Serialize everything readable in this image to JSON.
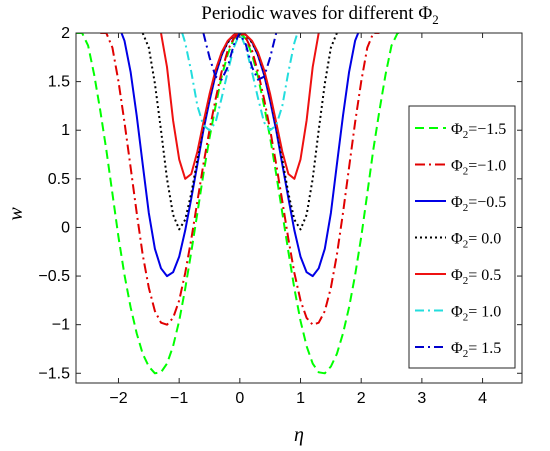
{
  "chart_data": {
    "type": "line",
    "title": "Periodic waves for different Φ",
    "title_subscript": "2",
    "xlabel": "η",
    "ylabel": "w",
    "xlim": [
      -2.7,
      4.65
    ],
    "ylim": [
      -1.6,
      2.0
    ],
    "xticks": [
      -2,
      -1,
      0,
      1,
      2,
      3,
      4
    ],
    "xtick_labels": [
      "−2",
      "−1",
      "0",
      "1",
      "2",
      "3",
      "4"
    ],
    "yticks": [
      -1.5,
      -1,
      -0.5,
      0,
      0.5,
      1,
      1.5,
      2
    ],
    "ytick_labels": [
      "−1.5",
      "−1",
      "−0.5",
      "0",
      "0.5",
      "1",
      "1.5",
      "2"
    ],
    "grid": false,
    "legend_position": "right",
    "legend_symbol": "Φ",
    "legend_subscript": "2",
    "series": [
      {
        "name": "Φ2=−1.5",
        "label_value": "=−1.5",
        "phi": -1.5,
        "color": "#00ff00",
        "dash": "9,5",
        "x": [
          -2.7,
          -2.6,
          -2.5,
          -2.4,
          -2.3,
          -2.2,
          -2.1,
          -2.0,
          -1.9,
          -1.8,
          -1.7,
          -1.6,
          -1.5,
          -1.4,
          -1.3,
          -1.2,
          -1.1,
          -1.0,
          -0.9,
          -0.8,
          -0.7,
          -0.6,
          -0.5,
          -0.4,
          -0.3,
          -0.2,
          -0.1,
          0.0,
          0.1,
          0.2,
          0.3,
          0.4,
          0.5,
          0.6,
          0.7,
          0.8,
          0.9,
          1.0,
          1.1,
          1.2,
          1.3,
          1.4,
          1.5,
          1.6,
          1.7,
          1.8,
          1.9,
          2.0,
          2.1,
          2.2,
          2.3,
          2.4,
          2.5,
          2.6,
          2.7
        ],
        "y": [
          2.0,
          2.0,
          1.87,
          1.57,
          1.2,
          0.8,
          0.35,
          -0.1,
          -0.49,
          -0.82,
          -1.09,
          -1.3,
          -1.43,
          -1.5,
          -1.49,
          -1.4,
          -1.22,
          -0.96,
          -0.63,
          -0.25,
          0.15,
          0.55,
          0.92,
          1.25,
          1.55,
          1.78,
          1.94,
          2.0,
          1.94,
          1.78,
          1.55,
          1.25,
          0.92,
          0.55,
          0.15,
          -0.25,
          -0.63,
          -0.96,
          -1.22,
          -1.4,
          -1.49,
          -1.5,
          -1.43,
          -1.3,
          -1.09,
          -0.82,
          -0.49,
          -0.1,
          0.35,
          0.8,
          1.2,
          1.57,
          1.87,
          2.0,
          2.0
        ]
      },
      {
        "name": "Φ2=−1.0",
        "label_value": "=−1.0",
        "phi": -1.0,
        "color": "#e00000",
        "dash": "10,4,2,4",
        "x": [
          -2.3,
          -2.2,
          -2.1,
          -2.0,
          -1.9,
          -1.8,
          -1.7,
          -1.6,
          -1.5,
          -1.4,
          -1.3,
          -1.2,
          -1.1,
          -1.0,
          -0.9,
          -0.8,
          -0.7,
          -0.6,
          -0.5,
          -0.4,
          -0.3,
          -0.2,
          -0.1,
          0.0,
          0.1,
          0.2,
          0.3,
          0.4,
          0.5,
          0.6,
          0.7,
          0.8,
          0.9,
          1.0,
          1.1,
          1.2,
          1.3,
          1.4,
          1.5,
          1.6,
          1.7,
          1.8,
          1.9,
          2.0,
          2.1,
          2.2,
          2.3
        ],
        "y": [
          2.0,
          2.0,
          1.85,
          1.5,
          1.08,
          0.62,
          0.15,
          -0.28,
          -0.62,
          -0.86,
          -0.98,
          -1.0,
          -0.93,
          -0.75,
          -0.47,
          -0.12,
          0.27,
          0.65,
          1.0,
          1.32,
          1.6,
          1.82,
          1.95,
          2.0,
          1.95,
          1.82,
          1.6,
          1.32,
          1.0,
          0.65,
          0.27,
          -0.12,
          -0.47,
          -0.75,
          -0.93,
          -1.0,
          -0.98,
          -0.86,
          -0.62,
          -0.28,
          0.15,
          0.62,
          1.08,
          1.5,
          1.85,
          2.0,
          2.0
        ]
      },
      {
        "name": "Φ2=−0.5",
        "label_value": "=−0.5",
        "phi": -0.5,
        "color": "#0000e6",
        "dash": "",
        "x": [
          -1.95,
          -1.9,
          -1.8,
          -1.7,
          -1.6,
          -1.5,
          -1.4,
          -1.3,
          -1.2,
          -1.1,
          -1.0,
          -0.9,
          -0.8,
          -0.7,
          -0.6,
          -0.5,
          -0.4,
          -0.3,
          -0.2,
          -0.1,
          0.0,
          0.1,
          0.2,
          0.3,
          0.4,
          0.5,
          0.6,
          0.7,
          0.8,
          0.9,
          1.0,
          1.1,
          1.2,
          1.3,
          1.4,
          1.5,
          1.6,
          1.7,
          1.8,
          1.9,
          1.95
        ],
        "y": [
          2.0,
          1.92,
          1.6,
          1.15,
          0.65,
          0.15,
          -0.22,
          -0.42,
          -0.5,
          -0.46,
          -0.3,
          -0.03,
          0.3,
          0.65,
          1.0,
          1.3,
          1.57,
          1.77,
          1.91,
          1.98,
          2.0,
          1.98,
          1.91,
          1.77,
          1.57,
          1.3,
          1.0,
          0.65,
          0.3,
          -0.03,
          -0.3,
          -0.46,
          -0.5,
          -0.42,
          -0.22,
          0.15,
          0.65,
          1.15,
          1.6,
          1.92,
          2.0
        ]
      },
      {
        "name": "Φ2= 0.0",
        "label_value": "= 0.0",
        "phi": 0.0,
        "color": "#000000",
        "dash": "2,3",
        "x": [
          -1.6,
          -1.5,
          -1.4,
          -1.3,
          -1.2,
          -1.1,
          -1.0,
          -0.9,
          -0.8,
          -0.7,
          -0.6,
          -0.5,
          -0.4,
          -0.3,
          -0.2,
          -0.1,
          0.0,
          0.1,
          0.2,
          0.3,
          0.4,
          0.5,
          0.6,
          0.7,
          0.8,
          0.9,
          1.0,
          1.1,
          1.2,
          1.3,
          1.4,
          1.5,
          1.6
        ],
        "y": [
          2.0,
          1.85,
          1.48,
          1.0,
          0.5,
          0.13,
          -0.02,
          0.08,
          0.35,
          0.7,
          1.05,
          1.35,
          1.6,
          1.78,
          1.9,
          1.98,
          2.0,
          1.98,
          1.9,
          1.78,
          1.6,
          1.35,
          1.05,
          0.7,
          0.35,
          0.08,
          -0.02,
          0.13,
          0.5,
          1.0,
          1.48,
          1.85,
          2.0
        ]
      },
      {
        "name": "Φ2= 0.5",
        "label_value": "= 0.5",
        "phi": 0.5,
        "color": "#ee1111",
        "dash": "",
        "x": [
          -1.3,
          -1.2,
          -1.1,
          -1.0,
          -0.9,
          -0.8,
          -0.7,
          -0.6,
          -0.5,
          -0.4,
          -0.3,
          -0.2,
          -0.1,
          0.0,
          0.1,
          0.2,
          0.3,
          0.4,
          0.5,
          0.6,
          0.7,
          0.8,
          0.9,
          1.0,
          1.1,
          1.2,
          1.3
        ],
        "y": [
          2.0,
          1.65,
          1.1,
          0.7,
          0.5,
          0.55,
          0.78,
          1.08,
          1.37,
          1.62,
          1.8,
          1.92,
          1.98,
          2.0,
          1.98,
          1.92,
          1.8,
          1.62,
          1.37,
          1.08,
          0.78,
          0.55,
          0.5,
          0.7,
          1.1,
          1.65,
          2.0
        ]
      },
      {
        "name": "Φ2= 1.0",
        "label_value": "= 1.0",
        "phi": 1.0,
        "color": "#22dddd",
        "dash": "9,4,2,4",
        "x": [
          -0.95,
          -0.9,
          -0.8,
          -0.7,
          -0.6,
          -0.5,
          -0.4,
          -0.3,
          -0.2,
          -0.1,
          0.0,
          0.1,
          0.2,
          0.3,
          0.4,
          0.5,
          0.6,
          0.7,
          0.8,
          0.9,
          0.95
        ],
        "y": [
          2.0,
          1.9,
          1.6,
          1.25,
          1.05,
          1.0,
          1.08,
          1.33,
          1.6,
          1.85,
          2.0,
          1.85,
          1.6,
          1.33,
          1.08,
          1.0,
          1.05,
          1.25,
          1.6,
          1.9,
          2.0
        ]
      },
      {
        "name": "Φ2= 1.5",
        "label_value": "= 1.5",
        "phi": 1.5,
        "color": "#0000cc",
        "dash": "9,4,2,4",
        "x": [
          -0.6,
          -0.5,
          -0.4,
          -0.3,
          -0.2,
          -0.1,
          0.0,
          0.1,
          0.2,
          0.3,
          0.4,
          0.5,
          0.6
        ],
        "y": [
          2.0,
          1.75,
          1.55,
          1.52,
          1.65,
          1.88,
          2.0,
          1.88,
          1.65,
          1.52,
          1.55,
          1.75,
          2.0
        ]
      }
    ]
  }
}
